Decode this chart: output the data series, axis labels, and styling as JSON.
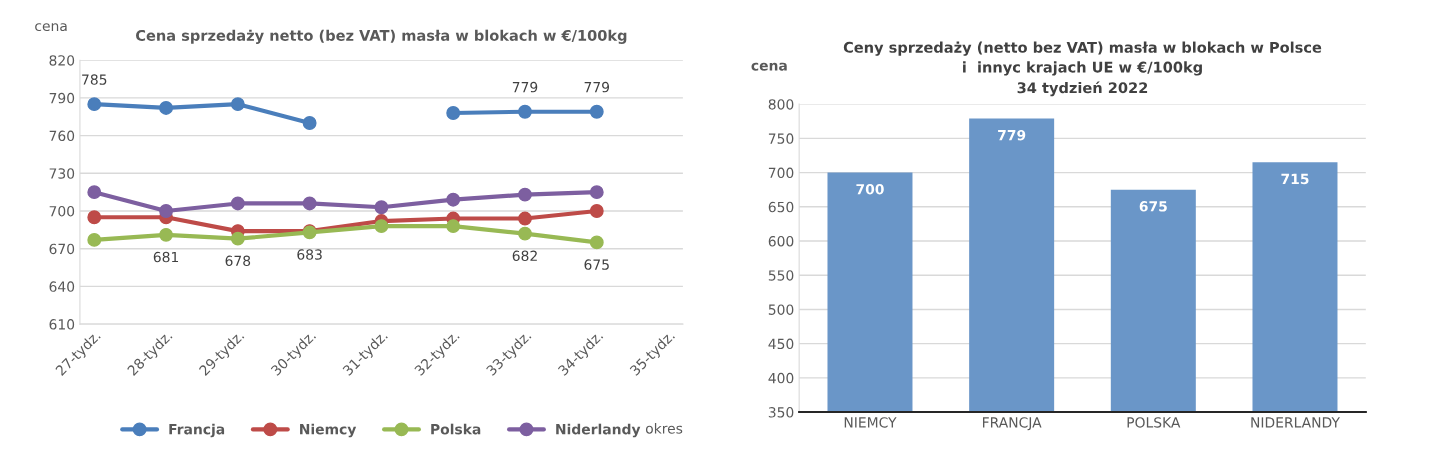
{
  "chart_data": [
    {
      "type": "line",
      "title": "Cena sprzedaży netto (bez VAT) masła w blokach w €/100kg",
      "ylabel": "cena",
      "xlabel": "okres",
      "categories": [
        "27-tydz.",
        "28-tydz.",
        "29-tydz.",
        "30-tydz.",
        "31-tydz.",
        "32-tydz.",
        "33-tydz.",
        "34-tydz.",
        "35-tydz."
      ],
      "series": [
        {
          "name": "Francja",
          "color": "#4a7ebb",
          "values": [
            785,
            782,
            785,
            770,
            null,
            778,
            779,
            779,
            null
          ],
          "value_labels": [
            "785",
            null,
            null,
            null,
            null,
            null,
            "779",
            "779",
            null
          ]
        },
        {
          "name": "Niemcy",
          "color": "#be4b48",
          "values": [
            695,
            695,
            684,
            684,
            692,
            694,
            694,
            700,
            null
          ]
        },
        {
          "name": "Polska",
          "color": "#98b954",
          "values": [
            677,
            681,
            678,
            683,
            688,
            688,
            682,
            675,
            null
          ],
          "value_labels": [
            null,
            "681",
            "678",
            "683",
            null,
            null,
            "682",
            "675",
            null
          ]
        },
        {
          "name": "Niderlandy",
          "color": "#7d5fa0",
          "values": [
            715,
            700,
            706,
            706,
            703,
            709,
            713,
            715,
            null
          ]
        }
      ],
      "ylim": [
        610,
        820
      ],
      "yticks": [
        610,
        640,
        670,
        700,
        730,
        760,
        790,
        820
      ],
      "grid": "y",
      "legend": "bottom",
      "marker": "circle",
      "line_style": "solid"
    },
    {
      "type": "bar",
      "title": "Ceny sprzedaży (netto bez VAT) masła w blokach w Polsce\ni  innyc krajach UE w €/100kg\n34 tydzień 2022",
      "ylabel": "cena",
      "categories": [
        "NIEMCY",
        "FRANCJA",
        "POLSKA",
        "NIDERLANDY"
      ],
      "values": [
        700,
        779,
        675,
        715
      ],
      "color": "#6a96c8",
      "ylim": [
        350,
        800
      ],
      "yticks": [
        350,
        400,
        450,
        500,
        550,
        600,
        650,
        700,
        750,
        800
      ],
      "grid": "y",
      "data_labels": true
    }
  ]
}
